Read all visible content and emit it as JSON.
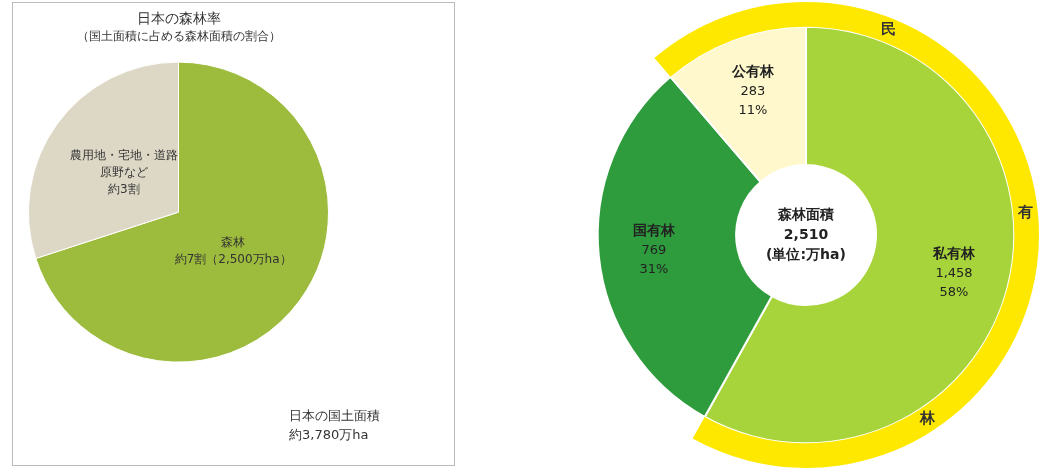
{
  "chart_data": [
    {
      "type": "pie",
      "title": "日本の森林率",
      "subtitle": "（国土面積に占める森林面積の割合）",
      "categories": [
        "森林",
        "農用地・宅地・道路\n原野など"
      ],
      "values": [
        7,
        3
      ],
      "value_labels": [
        "約7割（2,500万ha）",
        "約3割"
      ],
      "colors": [
        "#9dbb3c",
        "#ddd8c6"
      ],
      "data_labels": true,
      "annotation": "日本の国土面積\n約3,780万ha"
    },
    {
      "type": "doughnut",
      "categories": [
        "私有林",
        "国有林",
        "公有林"
      ],
      "values": [
        1458,
        769,
        283
      ],
      "value_labels": [
        "1,458",
        "769",
        "283"
      ],
      "percent_labels": [
        "58%",
        "31%",
        "11%"
      ],
      "colors": [
        "#a7d43a",
        "#2e9b3c",
        "#fff8cc"
      ],
      "data_labels": true,
      "center_label": [
        "森林面積",
        "2,510",
        "(単位:万ha)"
      ],
      "group": {
        "name": "民有林",
        "members": [
          "公有林",
          "私有林"
        ],
        "color": "#ffe800"
      }
    }
  ]
}
